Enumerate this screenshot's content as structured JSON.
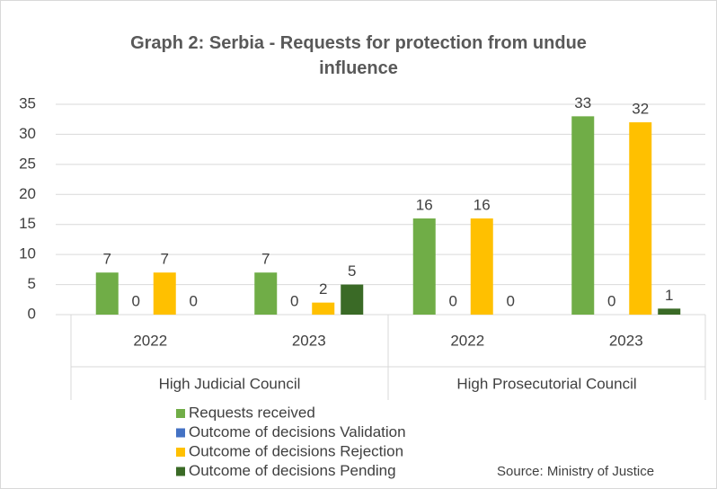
{
  "chart_data": {
    "type": "bar",
    "title": "Graph 2: Serbia - Requests for protection from undue influence",
    "categories": [
      "2022",
      "2023",
      "2022",
      "2023"
    ],
    "category_groups": [
      {
        "name": "High Judicial Council",
        "span": 2
      },
      {
        "name": "High Prosecutorial Council",
        "span": 2
      }
    ],
    "series": [
      {
        "name": "Requests received",
        "color": "#70ad47",
        "values": [
          7,
          7,
          16,
          33
        ]
      },
      {
        "name": "Outcome of decisions Validation",
        "color": "#4472c4",
        "values": [
          0,
          0,
          0,
          0
        ]
      },
      {
        "name": "Outcome of decisions Rejection",
        "color": "#ffc000",
        "values": [
          7,
          2,
          16,
          32
        ]
      },
      {
        "name": "Outcome of decisions Pending",
        "color": "#3a6a26",
        "values": [
          0,
          5,
          0,
          1
        ]
      }
    ],
    "ylim": [
      0,
      35
    ],
    "yticks": [
      0,
      5,
      10,
      15,
      20,
      25,
      30,
      35
    ],
    "grid": true,
    "data_labels": true,
    "legend": "bottom",
    "source": "Source: Ministry of Justice"
  }
}
